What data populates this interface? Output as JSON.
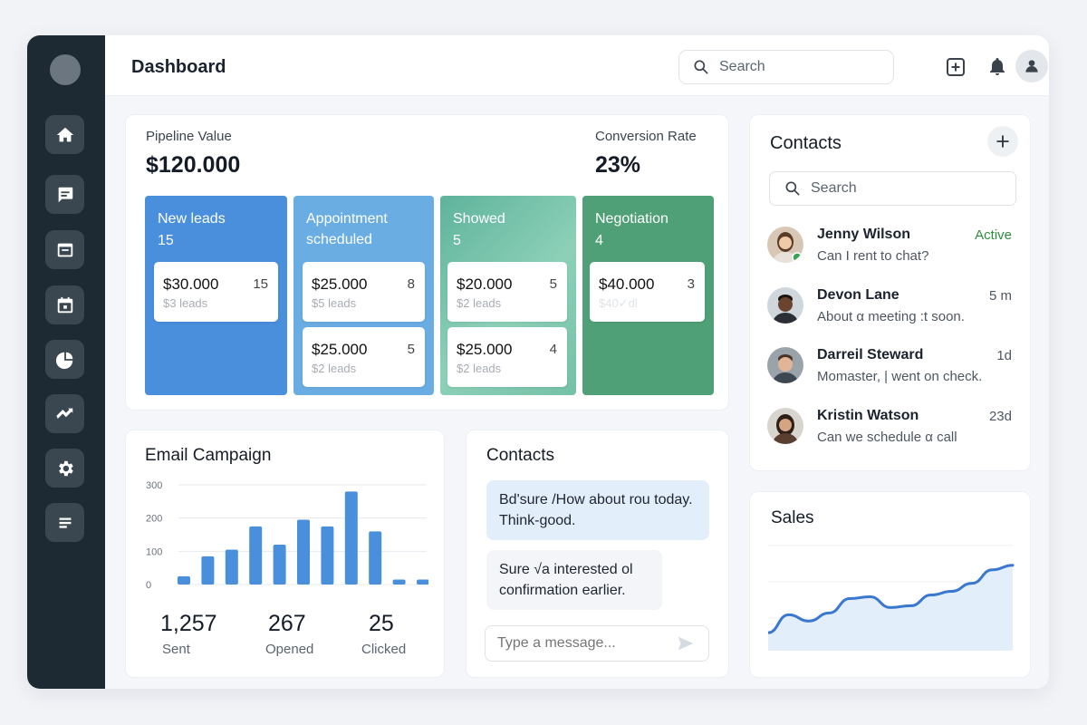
{
  "header": {
    "title": "Dashboard",
    "search_placeholder": "Search",
    "icons": [
      "plus-square-icon",
      "bell-icon",
      "user-icon"
    ]
  },
  "sidebar": {
    "items": [
      {
        "icon": "home-icon"
      },
      {
        "icon": "chat-icon"
      },
      {
        "icon": "inbox-icon"
      },
      {
        "icon": "calendar-icon"
      },
      {
        "icon": "pie-chart-icon"
      },
      {
        "icon": "trend-icon"
      },
      {
        "icon": "gear-icon"
      },
      {
        "icon": "list-icon"
      }
    ]
  },
  "pipeline": {
    "value_label": "Pipeline Value",
    "value": "$120.000",
    "conversion_label": "Conversion Rate",
    "conversion": "23%",
    "stages": [
      {
        "title": "New leads",
        "count": "15",
        "color": "#4a8fdc",
        "deals": [
          {
            "value": "$30.000",
            "num": "15",
            "sub": "$3 leads"
          }
        ]
      },
      {
        "title": "Appointment scheduled",
        "count": "",
        "color": "#6aade3",
        "deals": [
          {
            "value": "$25.000",
            "num": "8",
            "sub": "$5 leads"
          },
          {
            "value": "$25.000",
            "num": "5",
            "sub": "$2 leads"
          }
        ]
      },
      {
        "title": "Showed",
        "count": "5",
        "color": "#74c1a6",
        "deals": [
          {
            "value": "$20.000",
            "num": "5",
            "sub": "$2 leads"
          },
          {
            "value": "$25.000",
            "num": "4",
            "sub": "$2 leads"
          }
        ]
      },
      {
        "title": "Negotiation",
        "count": "4",
        "color": "#4fa077",
        "deals": [
          {
            "value": "$40.000",
            "num": "3",
            "sub": "$40✓dl"
          }
        ]
      }
    ]
  },
  "email_campaign": {
    "title": "Email Campaign",
    "stats": [
      {
        "value": "1,257",
        "label": "Sent"
      },
      {
        "value": "267",
        "label": "Opened"
      },
      {
        "value": "25",
        "label": "Clicked"
      }
    ]
  },
  "chart_data": [
    {
      "type": "bar",
      "title": "Email Campaign",
      "categories": [
        "1",
        "2",
        "3",
        "4",
        "5",
        "6",
        "7",
        "8",
        "9",
        "10",
        "11"
      ],
      "values": [
        25,
        85,
        105,
        175,
        120,
        195,
        175,
        280,
        160,
        15,
        15
      ],
      "ylim": [
        0,
        300
      ],
      "yticks": [
        "300",
        "200",
        "100",
        "0"
      ],
      "color": "#4a8fdc",
      "grid": true
    },
    {
      "type": "area",
      "title": "Sales",
      "x": [
        0,
        1,
        2,
        3,
        4,
        5,
        6,
        7,
        8,
        9,
        10,
        11,
        12
      ],
      "values": [
        20,
        40,
        33,
        42,
        58,
        60,
        48,
        50,
        62,
        66,
        75,
        90,
        95
      ],
      "ylim": [
        0,
        120
      ],
      "color": "#3a78d0",
      "grid": true
    }
  ],
  "chat": {
    "title": "Contacts",
    "messages": [
      {
        "text": "Bd'sure /How about rou today. Think-good."
      },
      {
        "text": "Sure √a interested ol confirmation earlier."
      }
    ],
    "input_placeholder": "Type a message..."
  },
  "contacts": {
    "title": "Contacts",
    "search_placeholder": "Search",
    "items": [
      {
        "name": "Jenny Wilson",
        "preview": "Can I rent to chat?",
        "meta": "Active",
        "meta_color": "#2e8b3e"
      },
      {
        "name": "Devon Lane",
        "preview": "About α meeting :t soon.",
        "meta": "5 m",
        "meta_color": "#4e5661"
      },
      {
        "name": "Darreil Steward",
        "preview": "Momaster, | went on check.",
        "meta": "1d",
        "meta_color": "#4e5661"
      },
      {
        "name": "Kristin Watson",
        "preview": "Can we schedule α call",
        "meta": "23d",
        "meta_color": "#4e5661"
      }
    ]
  },
  "sales": {
    "title": "Sales"
  }
}
